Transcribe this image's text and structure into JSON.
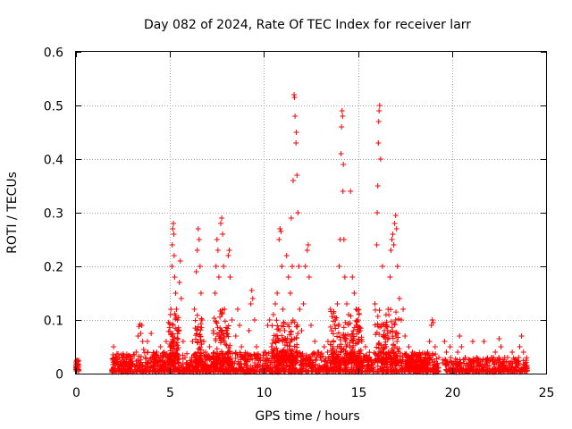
{
  "chart_data": {
    "type": "scatter",
    "title": "Day 082 of 2024, Rate Of TEC Index for receiver larr",
    "xlabel": "GPS time / hours",
    "ylabel": "ROTI / TECUs",
    "xlim": [
      0,
      25
    ],
    "ylim": [
      0,
      0.6
    ],
    "grid": true,
    "marker": "+",
    "color": "#ff0000",
    "x_ticks": [
      {
        "value": 0,
        "label": "0"
      },
      {
        "value": 5,
        "label": "5"
      },
      {
        "value": 10,
        "label": "10"
      },
      {
        "value": 15,
        "label": "15"
      },
      {
        "value": 20,
        "label": "20"
      },
      {
        "value": 25,
        "label": "25"
      }
    ],
    "y_ticks": [
      {
        "value": 0,
        "label": "0"
      },
      {
        "value": 0.1,
        "label": "0.1"
      },
      {
        "value": 0.2,
        "label": "0.2"
      },
      {
        "value": 0.3,
        "label": "0.3"
      },
      {
        "value": 0.4,
        "label": "0.4"
      },
      {
        "value": 0.5,
        "label": "0.5"
      },
      {
        "value": 0.6,
        "label": "0.6"
      }
    ],
    "series": [
      {
        "name": "ROTI",
        "points": [
          [
            0.0,
            0.012
          ],
          [
            0.0,
            0.02
          ],
          [
            0.0,
            0.016
          ],
          [
            0.05,
            0.025
          ],
          [
            0.05,
            0.008
          ],
          [
            0.1,
            0.018
          ],
          [
            0.1,
            0.022
          ],
          [
            2.0,
            0.05
          ],
          [
            2.0,
            0.01
          ],
          [
            2.1,
            0.02
          ],
          [
            2.2,
            0.015
          ],
          [
            2.3,
            0.03
          ],
          [
            2.4,
            0.01
          ],
          [
            2.5,
            0.025
          ],
          [
            2.6,
            0.018
          ],
          [
            2.7,
            0.03
          ],
          [
            2.8,
            0.012
          ],
          [
            2.9,
            0.022
          ],
          [
            3.0,
            0.028
          ],
          [
            3.1,
            0.035
          ],
          [
            3.2,
            0.04
          ],
          [
            3.3,
            0.07
          ],
          [
            3.35,
            0.088
          ],
          [
            3.4,
            0.092
          ],
          [
            3.45,
            0.075
          ],
          [
            3.5,
            0.09
          ],
          [
            3.55,
            0.06
          ],
          [
            3.6,
            0.045
          ],
          [
            3.7,
            0.03
          ],
          [
            3.8,
            0.06
          ],
          [
            3.9,
            0.025
          ],
          [
            4.0,
            0.075
          ],
          [
            4.1,
            0.035
          ],
          [
            4.2,
            0.02
          ],
          [
            4.3,
            0.04
          ],
          [
            4.4,
            0.03
          ],
          [
            4.5,
            0.05
          ],
          [
            4.6,
            0.025
          ],
          [
            4.7,
            0.04
          ],
          [
            4.8,
            0.06
          ],
          [
            5.0,
            0.05
          ],
          [
            5.05,
            0.12
          ],
          [
            5.1,
            0.2
          ],
          [
            5.12,
            0.24
          ],
          [
            5.15,
            0.27
          ],
          [
            5.18,
            0.28
          ],
          [
            5.2,
            0.26
          ],
          [
            5.22,
            0.22
          ],
          [
            5.25,
            0.18
          ],
          [
            5.3,
            0.15
          ],
          [
            5.35,
            0.12
          ],
          [
            5.4,
            0.1
          ],
          [
            5.45,
            0.08
          ],
          [
            5.5,
            0.17
          ],
          [
            5.55,
            0.21
          ],
          [
            5.6,
            0.14
          ],
          [
            5.7,
            0.06
          ],
          [
            5.8,
            0.03
          ],
          [
            5.9,
            0.02
          ],
          [
            6.2,
            0.06
          ],
          [
            6.3,
            0.12
          ],
          [
            6.4,
            0.19
          ],
          [
            6.45,
            0.23
          ],
          [
            6.5,
            0.27
          ],
          [
            6.55,
            0.25
          ],
          [
            6.6,
            0.2
          ],
          [
            6.65,
            0.15
          ],
          [
            6.7,
            0.1
          ],
          [
            6.8,
            0.06
          ],
          [
            6.9,
            0.04
          ],
          [
            7.0,
            0.03
          ],
          [
            7.1,
            0.05
          ],
          [
            7.3,
            0.08
          ],
          [
            7.4,
            0.15
          ],
          [
            7.45,
            0.2
          ],
          [
            7.5,
            0.25
          ],
          [
            7.55,
            0.23
          ],
          [
            7.6,
            0.18
          ],
          [
            7.7,
            0.28
          ],
          [
            7.75,
            0.29
          ],
          [
            7.8,
            0.26
          ],
          [
            7.85,
            0.2
          ],
          [
            7.9,
            0.12
          ],
          [
            8.0,
            0.08
          ],
          [
            8.1,
            0.22
          ],
          [
            8.15,
            0.23
          ],
          [
            8.2,
            0.18
          ],
          [
            8.3,
            0.1
          ],
          [
            8.5,
            0.07
          ],
          [
            8.6,
            0.12
          ],
          [
            8.7,
            0.09
          ],
          [
            8.8,
            0.05
          ],
          [
            9.0,
            0.03
          ],
          [
            9.2,
            0.08
          ],
          [
            9.3,
            0.13
          ],
          [
            9.35,
            0.155
          ],
          [
            9.4,
            0.14
          ],
          [
            9.5,
            0.1
          ],
          [
            9.6,
            0.05
          ],
          [
            9.8,
            0.03
          ],
          [
            10.0,
            0.04
          ],
          [
            10.2,
            0.09
          ],
          [
            10.3,
            0.1
          ],
          [
            10.4,
            0.05
          ],
          [
            10.5,
            0.11
          ],
          [
            10.6,
            0.13
          ],
          [
            10.7,
            0.15
          ],
          [
            10.8,
            0.25
          ],
          [
            10.85,
            0.27
          ],
          [
            10.9,
            0.265
          ],
          [
            10.95,
            0.2
          ],
          [
            11.0,
            0.12
          ],
          [
            11.1,
            0.08
          ],
          [
            11.2,
            0.22
          ],
          [
            11.3,
            0.18
          ],
          [
            11.4,
            0.15
          ],
          [
            11.45,
            0.29
          ],
          [
            11.5,
            0.2
          ],
          [
            11.55,
            0.36
          ],
          [
            11.6,
            0.52
          ],
          [
            11.62,
            0.515
          ],
          [
            11.65,
            0.48
          ],
          [
            11.7,
            0.43
          ],
          [
            11.72,
            0.45
          ],
          [
            11.75,
            0.37
          ],
          [
            11.8,
            0.3
          ],
          [
            11.85,
            0.2
          ],
          [
            11.9,
            0.12
          ],
          [
            12.0,
            0.08
          ],
          [
            12.1,
            0.13
          ],
          [
            12.2,
            0.2
          ],
          [
            12.3,
            0.23
          ],
          [
            12.35,
            0.24
          ],
          [
            12.4,
            0.18
          ],
          [
            12.5,
            0.09
          ],
          [
            12.7,
            0.06
          ],
          [
            12.9,
            0.04
          ],
          [
            13.0,
            0.03
          ],
          [
            13.2,
            0.05
          ],
          [
            13.4,
            0.06
          ],
          [
            13.6,
            0.08
          ],
          [
            13.8,
            0.1
          ],
          [
            13.9,
            0.13
          ],
          [
            14.0,
            0.2
          ],
          [
            14.05,
            0.25
          ],
          [
            14.1,
            0.41
          ],
          [
            14.12,
            0.46
          ],
          [
            14.15,
            0.49
          ],
          [
            14.18,
            0.48
          ],
          [
            14.2,
            0.34
          ],
          [
            14.22,
            0.39
          ],
          [
            14.25,
            0.25
          ],
          [
            14.3,
            0.18
          ],
          [
            14.4,
            0.13
          ],
          [
            14.5,
            0.11
          ],
          [
            14.6,
            0.34
          ],
          [
            14.7,
            0.18
          ],
          [
            14.8,
            0.15
          ],
          [
            14.9,
            0.12
          ],
          [
            15.0,
            0.1
          ],
          [
            15.1,
            0.08
          ],
          [
            15.2,
            0.06
          ],
          [
            15.4,
            0.05
          ],
          [
            15.6,
            0.03
          ],
          [
            15.8,
            0.02
          ],
          [
            15.9,
            0.13
          ],
          [
            16.0,
            0.24
          ],
          [
            16.02,
            0.3
          ],
          [
            16.05,
            0.35
          ],
          [
            16.08,
            0.43
          ],
          [
            16.1,
            0.47
          ],
          [
            16.12,
            0.49
          ],
          [
            16.15,
            0.5
          ],
          [
            16.2,
            0.4
          ],
          [
            16.3,
            0.2
          ],
          [
            16.4,
            0.08
          ],
          [
            16.5,
            0.05
          ],
          [
            16.6,
            0.12
          ],
          [
            16.7,
            0.18
          ],
          [
            16.75,
            0.23
          ],
          [
            16.8,
            0.25
          ],
          [
            16.85,
            0.26
          ],
          [
            16.9,
            0.24
          ],
          [
            16.95,
            0.28
          ],
          [
            17.0,
            0.295
          ],
          [
            17.05,
            0.27
          ],
          [
            17.1,
            0.2
          ],
          [
            17.2,
            0.14
          ],
          [
            17.3,
            0.1
          ],
          [
            17.4,
            0.12
          ],
          [
            17.5,
            0.07
          ],
          [
            17.7,
            0.05
          ],
          [
            17.9,
            0.04
          ],
          [
            18.1,
            0.03
          ],
          [
            18.3,
            0.03
          ],
          [
            18.5,
            0.02
          ],
          [
            18.7,
            0.04
          ],
          [
            18.8,
            0.06
          ],
          [
            18.9,
            0.09
          ],
          [
            18.95,
            0.1
          ],
          [
            19.0,
            0.095
          ],
          [
            19.1,
            0.05
          ],
          [
            19.3,
            0.03
          ],
          [
            19.5,
            0.02
          ],
          [
            19.6,
            0.06
          ],
          [
            19.7,
            0.04
          ],
          [
            19.9,
            0.05
          ],
          [
            20.1,
            0.02
          ],
          [
            20.3,
            0.04
          ],
          [
            20.4,
            0.07
          ],
          [
            20.5,
            0.05
          ],
          [
            20.7,
            0.03
          ],
          [
            20.9,
            0.02
          ],
          [
            21.1,
            0.06
          ],
          [
            21.3,
            0.03
          ],
          [
            21.5,
            0.02
          ],
          [
            21.7,
            0.06
          ],
          [
            21.9,
            0.02
          ],
          [
            22.1,
            0.03
          ],
          [
            22.3,
            0.04
          ],
          [
            22.5,
            0.065
          ],
          [
            22.6,
            0.05
          ],
          [
            22.8,
            0.03
          ],
          [
            23.0,
            0.02
          ],
          [
            23.2,
            0.04
          ],
          [
            23.4,
            0.02
          ],
          [
            23.6,
            0.05
          ],
          [
            23.7,
            0.07
          ],
          [
            23.8,
            0.04
          ],
          [
            23.9,
            0.02
          ],
          [
            24.0,
            0.01
          ]
        ],
        "ranges": [
          {
            "x0": 0.0,
            "x1": 0.15,
            "dense": [
              0.005,
              0.025
            ],
            "n": 25
          },
          {
            "x0": 1.9,
            "x1": 19.3,
            "dense": [
              0.003,
              0.04
            ],
            "n": 1600
          },
          {
            "x0": 4.9,
            "x1": 5.5,
            "dense": [
              0.02,
              0.12
            ],
            "n": 90
          },
          {
            "x0": 6.3,
            "x1": 6.7,
            "dense": [
              0.02,
              0.12
            ],
            "n": 60
          },
          {
            "x0": 7.3,
            "x1": 8.2,
            "dense": [
              0.02,
              0.12
            ],
            "n": 90
          },
          {
            "x0": 10.4,
            "x1": 11.8,
            "dense": [
              0.02,
              0.1
            ],
            "n": 150
          },
          {
            "x0": 13.5,
            "x1": 15.2,
            "dense": [
              0.02,
              0.12
            ],
            "n": 170
          },
          {
            "x0": 15.9,
            "x1": 17.2,
            "dense": [
              0.02,
              0.12
            ],
            "n": 110
          },
          {
            "x0": 17.5,
            "x1": 18.9,
            "dense": [
              0.01,
              0.035
            ],
            "n": 90
          },
          {
            "x0": 19.5,
            "x1": 24.0,
            "dense": [
              0.003,
              0.03
            ],
            "n": 340
          }
        ]
      }
    ]
  }
}
